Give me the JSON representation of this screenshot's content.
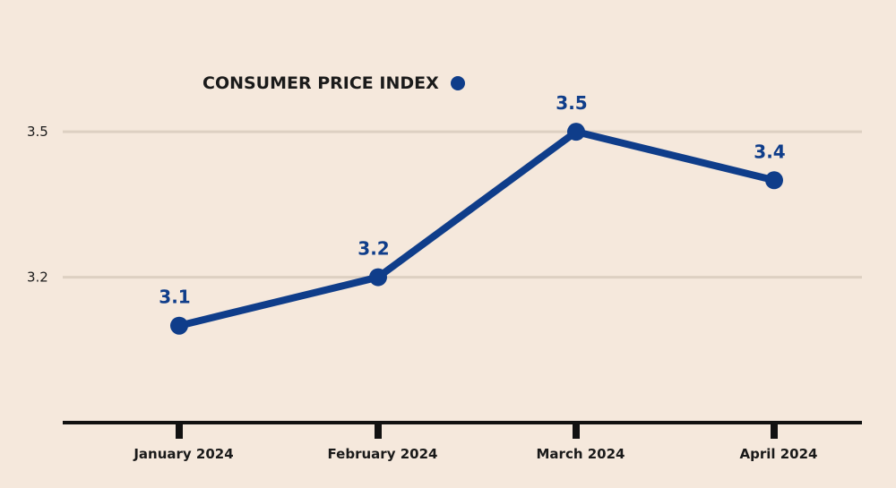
{
  "chart_data": {
    "type": "line",
    "categories": [
      "January 2024",
      "February 2024",
      "March 2024",
      "April 2024"
    ],
    "series": [
      {
        "name": "CONSUMER PRICE INDEX",
        "values": [
          3.1,
          3.2,
          3.5,
          3.4
        ],
        "labels": [
          "3.1",
          "3.2",
          "3.5",
          "3.4"
        ]
      }
    ],
    "y_ticks": [
      3.2,
      3.5
    ],
    "y_tick_labels": [
      "3.2",
      "3.5"
    ],
    "ylim": [
      2.9,
      3.6
    ],
    "grid": true,
    "legend_position": "top-left",
    "colors": {
      "series": "#0f3d8a",
      "background": "#f5e8dc",
      "grid": "#ddd0c2",
      "axis": "#111111"
    }
  }
}
